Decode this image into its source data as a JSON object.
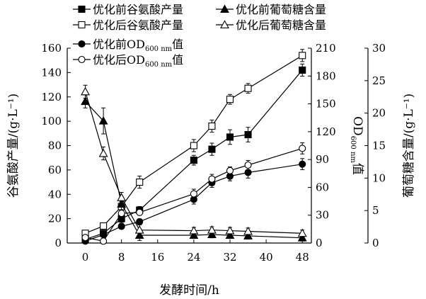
{
  "chart_data": {
    "type": "line",
    "xlabel": "发酵时间/h",
    "x_ticks": [
      0,
      8,
      16,
      24,
      32,
      40,
      48
    ],
    "xlim": [
      -4,
      50
    ],
    "axes": {
      "left": {
        "label": "谷氨酸产量/(g·L⁻¹)",
        "lim": [
          0,
          160
        ],
        "ticks": [
          0,
          20,
          40,
          60,
          80,
          100,
          120,
          140,
          160
        ]
      },
      "right1": {
        "label_main": "OD",
        "label_sub": "600 nm",
        "label_tail": "值",
        "lim": [
          0,
          210
        ],
        "ticks": [
          0,
          30,
          60,
          90,
          120,
          150,
          180,
          210
        ]
      },
      "right2": {
        "label": "葡萄糖含量/(g·L⁻¹)",
        "lim": [
          0,
          30
        ],
        "ticks": [
          0,
          5,
          10,
          15,
          20,
          25,
          30
        ]
      }
    },
    "legend": {
      "row1": [
        "优化前谷氨酸产量",
        "优化前葡萄糖含量"
      ],
      "row2": [
        "优化后谷氨酸产量",
        "优化后葡萄糖含量"
      ],
      "row3": {
        "main": "优化前OD",
        "sub": "600 nm",
        "tail": "值"
      },
      "row4": {
        "main": "优化后OD",
        "sub": "600 nm",
        "tail": "值"
      }
    },
    "series": [
      {
        "name": "优化前谷氨酸产量",
        "axis": "left",
        "marker": "square",
        "filled": true,
        "x": [
          0,
          4,
          8,
          12,
          24,
          28,
          32,
          36,
          48
        ],
        "y": [
          3,
          8,
          20,
          27,
          68,
          77,
          87,
          89,
          142
        ],
        "err": [
          2,
          2,
          3,
          3,
          4,
          5,
          6,
          6,
          5
        ]
      },
      {
        "name": "优化后谷氨酸产量",
        "axis": "left",
        "marker": "square",
        "filled": false,
        "x": [
          0,
          4,
          8,
          12,
          24,
          28,
          32,
          36,
          48
        ],
        "y": [
          8,
          14,
          30,
          50,
          80,
          96,
          118,
          127,
          154
        ],
        "err": [
          2,
          2,
          4,
          5,
          5,
          5,
          4,
          4,
          5
        ]
      },
      {
        "name": "优化前葡萄糖含量",
        "axis": "right2",
        "marker": "triangle",
        "filled": true,
        "x": [
          0,
          4,
          8,
          12,
          24,
          28,
          32,
          36,
          48
        ],
        "y": [
          21.8,
          18.8,
          6.0,
          1.2,
          1.2,
          1.3,
          1.2,
          1.1,
          0.8
        ],
        "err": [
          1.0,
          2.0,
          1.0,
          0.8,
          0.5,
          0.5,
          0.5,
          0.5,
          0.5
        ]
      },
      {
        "name": "优化后葡萄糖含量",
        "axis": "right2",
        "marker": "triangle",
        "filled": false,
        "x": [
          0,
          4,
          8,
          12,
          24,
          28,
          32,
          36,
          48
        ],
        "y": [
          23.3,
          13.8,
          7.0,
          2.0,
          1.9,
          2.0,
          1.9,
          1.8,
          1.5
        ],
        "err": [
          1.0,
          1.0,
          0.8,
          0.8,
          0.5,
          0.5,
          0.5,
          0.5,
          0.5
        ]
      },
      {
        "name": "优化前OD600 nm值",
        "axis": "right1",
        "marker": "circle",
        "filled": true,
        "x": [
          0,
          4,
          8,
          12,
          24,
          28,
          32,
          36,
          48
        ],
        "y": [
          2,
          9,
          18,
          23,
          47,
          65,
          72,
          76,
          85
        ],
        "err": [
          2,
          2,
          3,
          3,
          5,
          5,
          5,
          6,
          6
        ]
      },
      {
        "name": "优化后OD600 nm值",
        "axis": "right1",
        "marker": "circle",
        "filled": false,
        "x": [
          0,
          4,
          8,
          12,
          24,
          28,
          32,
          36,
          48
        ],
        "y": [
          6,
          2,
          32,
          33,
          53,
          69,
          78,
          84,
          102
        ],
        "err": [
          2,
          2,
          3,
          3,
          5,
          5,
          4,
          5,
          6
        ]
      }
    ]
  }
}
